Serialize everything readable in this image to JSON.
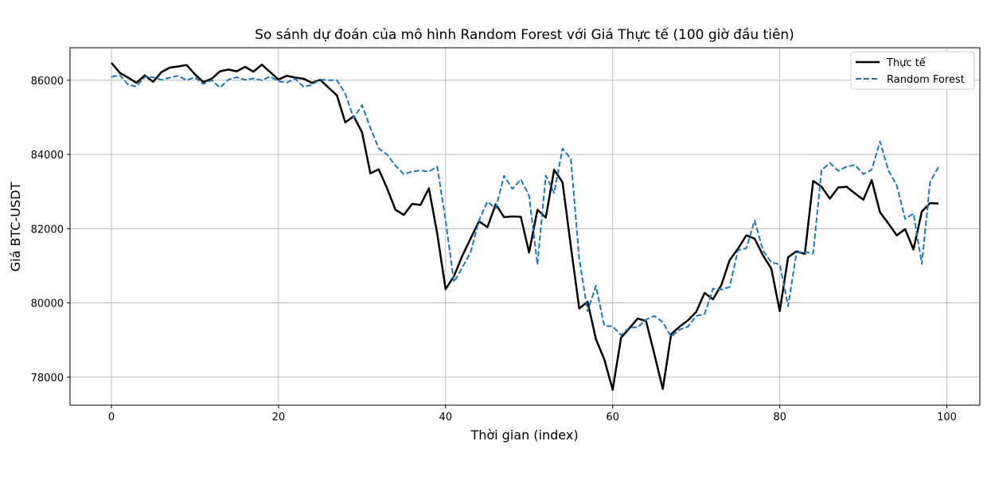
{
  "chart_data": {
    "type": "line",
    "title": "So sánh dự đoán của mô hình Random Forest với Giá Thực tế (100 giờ đầu tiên)",
    "xlabel": "Thời gian (index)",
    "ylabel": "Giá BTC-USDT",
    "xlim": [
      -4.95,
      103.95
    ],
    "ylim": [
      77245,
      86875
    ],
    "xticks": [
      0,
      20,
      40,
      60,
      80,
      100
    ],
    "yticks": [
      78000,
      80000,
      82000,
      84000,
      86000
    ],
    "grid": true,
    "legend_position": "top-right",
    "series": [
      {
        "name": "Thực tế",
        "color": "#000000",
        "style": "solid",
        "values": [
          86470,
          86200,
          86070,
          85930,
          86130,
          85960,
          86220,
          86340,
          86370,
          86410,
          86160,
          85950,
          86040,
          86240,
          86290,
          86240,
          86360,
          86230,
          86420,
          86220,
          86020,
          86120,
          86070,
          86040,
          85930,
          86010,
          85800,
          85590,
          84860,
          85030,
          84600,
          83490,
          83600,
          83090,
          82510,
          82370,
          82670,
          82640,
          83090,
          81870,
          80370,
          80720,
          81270,
          81740,
          82200,
          82040,
          82660,
          82310,
          82330,
          82320,
          81360,
          82510,
          82300,
          83590,
          83250,
          81520,
          79850,
          80030,
          79020,
          78480,
          77660,
          79060,
          79320,
          79580,
          79510,
          78610,
          77680,
          79160,
          79360,
          79530,
          79760,
          80270,
          80100,
          80480,
          81150,
          81460,
          81820,
          81730,
          81280,
          80920,
          79780,
          81230,
          81390,
          81320,
          83290,
          83130,
          82810,
          83110,
          83130,
          82950,
          82780,
          83310,
          82440,
          82140,
          81820,
          81990,
          81440,
          82460,
          82690,
          82680
        ]
      },
      {
        "name": "Random Forest",
        "color": "#1f77b4",
        "style": "dashed",
        "values": [
          86090,
          86140,
          85880,
          85830,
          86090,
          86080,
          86010,
          86070,
          86120,
          86000,
          86080,
          85900,
          86000,
          85800,
          86020,
          86080,
          86010,
          86050,
          86000,
          86100,
          85970,
          85940,
          86040,
          85820,
          85880,
          86020,
          86000,
          86000,
          85640,
          84980,
          85330,
          84720,
          84160,
          84000,
          83700,
          83470,
          83540,
          83570,
          83540,
          83670,
          82230,
          80560,
          80950,
          81370,
          82220,
          82730,
          82550,
          83430,
          83070,
          83330,
          82890,
          81030,
          83430,
          82960,
          84160,
          83880,
          81190,
          79780,
          80460,
          79380,
          79370,
          79130,
          79340,
          79340,
          79550,
          79650,
          79480,
          79090,
          79280,
          79360,
          79650,
          79700,
          80380,
          80360,
          80430,
          81420,
          81470,
          82220,
          81410,
          81090,
          81040,
          79910,
          81350,
          81380,
          81330,
          83580,
          83770,
          83560,
          83670,
          83720,
          83470,
          83590,
          84350,
          83570,
          83170,
          82260,
          82410,
          81050,
          83260,
          83660
        ]
      }
    ]
  }
}
